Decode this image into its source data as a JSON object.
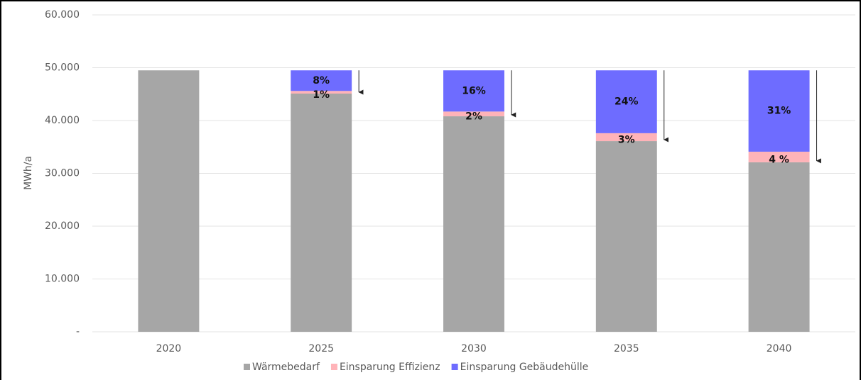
{
  "chart_data": {
    "type": "stacked-bar",
    "y_label": "MWh/a",
    "categories": [
      "2020",
      "2025",
      "2030",
      "2035",
      "2040"
    ],
    "series": [
      {
        "name": "Wärmebedarf",
        "color": "#a6a6a6",
        "values": [
          49500,
          45100,
          40800,
          36100,
          32100
        ]
      },
      {
        "name": "Einsparung Effizienz",
        "color": "#ffb3b8",
        "values": [
          0,
          500,
          900,
          1500,
          2000
        ],
        "value_labels": [
          null,
          "1%",
          "2%",
          "3%",
          "4 %"
        ]
      },
      {
        "name": "Einsparung Gebäudehülle",
        "color": "#6e6cff",
        "values": [
          0,
          3900,
          7800,
          11900,
          15400
        ],
        "value_labels": [
          null,
          "8%",
          "16%",
          "24%",
          "31%"
        ]
      }
    ],
    "ylim": [
      0,
      60000
    ],
    "yticks": [
      {
        "value": 0,
        "label": "-"
      },
      {
        "value": 10000,
        "label": "10.000"
      },
      {
        "value": 20000,
        "label": "20.000"
      },
      {
        "value": 30000,
        "label": "30.000"
      },
      {
        "value": 40000,
        "label": "40.000"
      },
      {
        "value": 50000,
        "label": "50.000"
      },
      {
        "value": 60000,
        "label": "60.000"
      }
    ],
    "grid": true,
    "legend": "bottom"
  }
}
